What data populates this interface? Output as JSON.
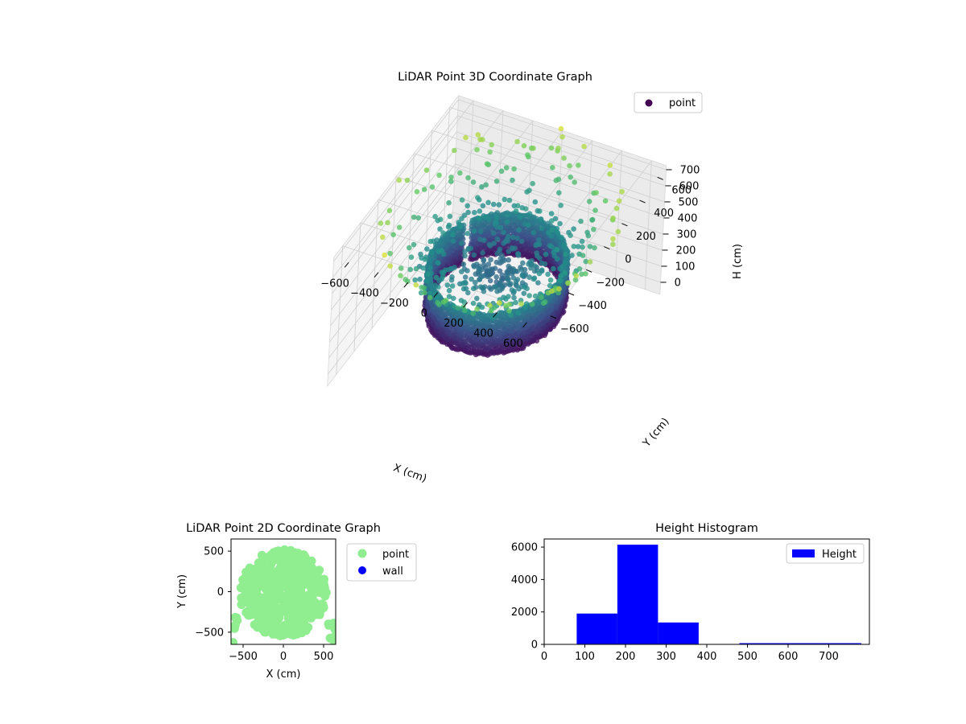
{
  "figure": {
    "background": "#ffffff"
  },
  "chart_data": [
    {
      "type": "scatter",
      "projection": "3d",
      "title": "LiDAR Point 3D Coordinate Graph",
      "xlabel": "X (cm)",
      "ylabel": "Y (cm)",
      "zlabel": "H (cm)",
      "xlim": [
        -700,
        700
      ],
      "ylim": [
        -700,
        700
      ],
      "zlim": [
        0,
        800
      ],
      "z_axis_inverted": true,
      "x_ticks": [
        -600,
        -400,
        -200,
        0,
        200,
        400,
        600
      ],
      "y_ticks": [
        -600,
        -400,
        -200,
        0,
        200,
        400,
        600
      ],
      "z_ticks": [
        0,
        100,
        200,
        300,
        400,
        500,
        600,
        700
      ],
      "colormap": "viridis (by height)",
      "colormap_stops": [
        "#440154",
        "#3b528b",
        "#21918c",
        "#5ec962",
        "#fde725"
      ],
      "grid": true,
      "legend": {
        "position": "top-right",
        "entries": [
          {
            "label": "point",
            "color": "#440154"
          }
        ]
      },
      "shape": "bowl: dense upper ring of radius ~400 cm near H 150-400 cm, sparse outer points spreading to radius ~700 cm down to H ~700 cm"
    },
    {
      "type": "scatter",
      "title": "LiDAR Point 2D Coordinate Graph",
      "xlabel": "X (cm)",
      "ylabel": "Y (cm)",
      "xlim": [
        -650,
        650
      ],
      "ylim": [
        -650,
        650
      ],
      "x_ticks": [
        -500,
        0,
        500
      ],
      "y_ticks": [
        -500,
        0,
        500
      ],
      "series": [
        {
          "name": "point",
          "color": "#90ee90",
          "description": "dense disc of radius ~520 cm centred near (0,0) plus scattered edge points"
        },
        {
          "name": "wall",
          "color": "#0000ff",
          "values": []
        }
      ],
      "legend": {
        "position": "outside-right",
        "entries": [
          {
            "label": "point",
            "color": "#90ee90"
          },
          {
            "label": "wall",
            "color": "#0000ff"
          }
        ]
      }
    },
    {
      "type": "bar",
      "subtype": "histogram",
      "title": "Height Histogram",
      "xlabel": "",
      "ylabel": "",
      "xlim": [
        0,
        800
      ],
      "ylim": [
        0,
        6500
      ],
      "x_ticks": [
        0,
        100,
        200,
        300,
        400,
        500,
        600,
        700
      ],
      "y_ticks": [
        0,
        2000,
        4000,
        6000
      ],
      "bins": [
        {
          "x0": 80,
          "x1": 180,
          "value": 1900
        },
        {
          "x0": 180,
          "x1": 280,
          "value": 6150
        },
        {
          "x0": 280,
          "x1": 380,
          "value": 1350
        },
        {
          "x0": 380,
          "x1": 480,
          "value": 0
        },
        {
          "x0": 480,
          "x1": 580,
          "value": 15
        },
        {
          "x0": 580,
          "x1": 680,
          "value": 15
        },
        {
          "x0": 680,
          "x1": 780,
          "value": 15
        }
      ],
      "series": [
        {
          "name": "Height",
          "color": "#0000ff"
        }
      ],
      "legend": {
        "position": "top-right",
        "entries": [
          {
            "label": "Height",
            "color": "#0000ff"
          }
        ]
      }
    }
  ]
}
